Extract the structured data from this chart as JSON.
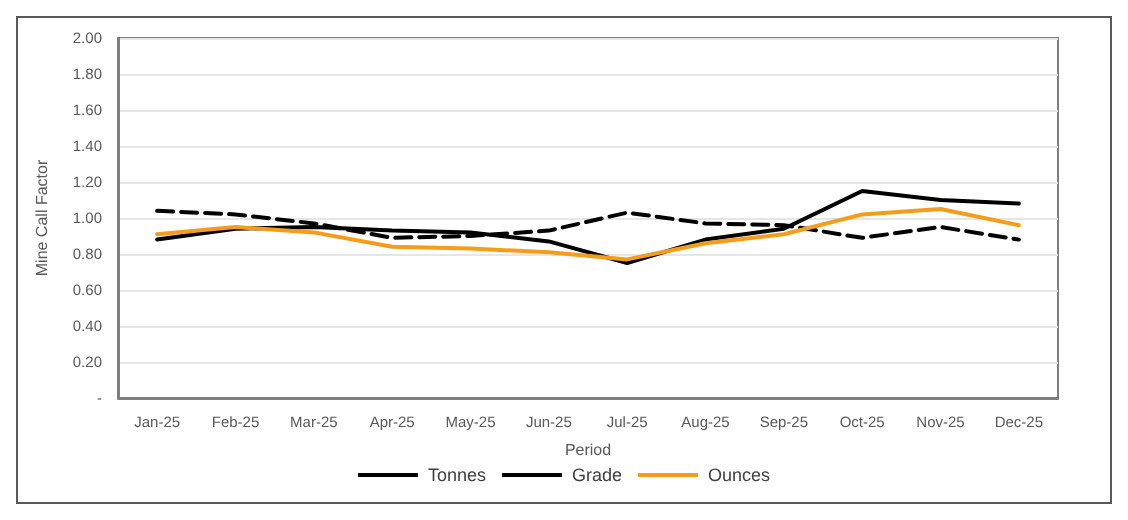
{
  "chart_data": {
    "type": "line",
    "xlabel": "Period",
    "ylabel": "Mine Call Factor",
    "categories": [
      "Jan-25",
      "Feb-25",
      "Mar-25",
      "Apr-25",
      "May-25",
      "Jun-25",
      "Jul-25",
      "Aug-25",
      "Sep-25",
      "Oct-25",
      "Nov-25",
      "Dec-25"
    ],
    "series": [
      {
        "name": "Tonnes",
        "color": "#000000",
        "line_style": "solid",
        "values": [
          0.88,
          0.94,
          0.95,
          0.93,
          0.92,
          0.87,
          0.75,
          0.88,
          0.94,
          1.15,
          1.1,
          1.08
        ]
      },
      {
        "name": "Grade",
        "color": "#000000",
        "line_style": "dashed",
        "values": [
          1.04,
          1.02,
          0.97,
          0.89,
          0.9,
          0.93,
          1.03,
          0.97,
          0.96,
          0.89,
          0.95,
          0.88
        ]
      },
      {
        "name": "Ounces",
        "color": "#f59c1a",
        "line_style": "solid",
        "values": [
          0.91,
          0.95,
          0.92,
          0.84,
          0.83,
          0.81,
          0.77,
          0.86,
          0.91,
          1.02,
          1.05,
          0.96
        ]
      }
    ],
    "ylim": [
      0,
      2
    ],
    "yticks": [
      {
        "value": 0,
        "label": "-"
      },
      {
        "value": 0.2,
        "label": "0.20"
      },
      {
        "value": 0.4,
        "label": "0.40"
      },
      {
        "value": 0.6,
        "label": "0.60"
      },
      {
        "value": 0.8,
        "label": "0.80"
      },
      {
        "value": 1,
        "label": "1.00"
      },
      {
        "value": 1.2,
        "label": "1.20"
      },
      {
        "value": 1.4,
        "label": "1.40"
      },
      {
        "value": 1.6,
        "label": "1.60"
      },
      {
        "value": 1.8,
        "label": "1.80"
      },
      {
        "value": 2,
        "label": "2.00"
      }
    ],
    "grid": "y",
    "legend": "bottom",
    "marker": "none"
  }
}
